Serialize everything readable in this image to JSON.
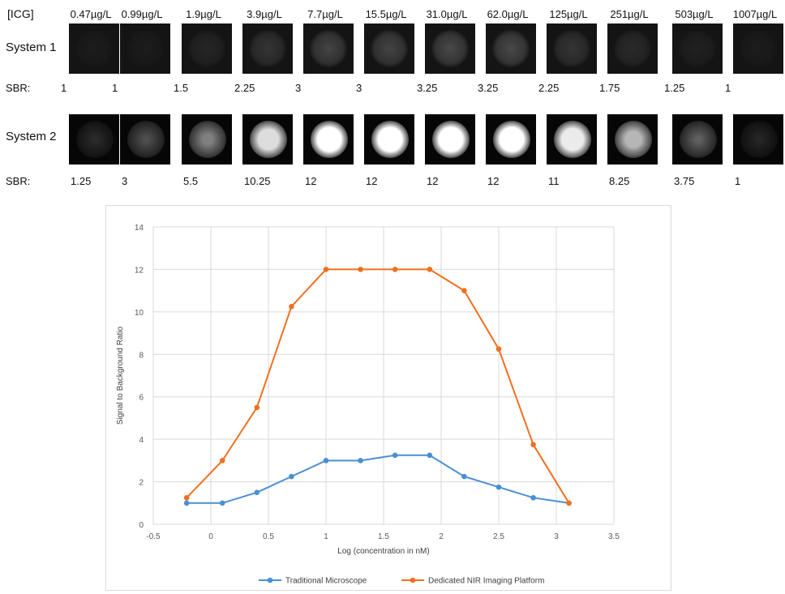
{
  "header": {
    "label": "[ICG]"
  },
  "concentrations": [
    "0.47µg/L",
    "0.99µg/L",
    "1.9µg/L",
    "3.9µg/L",
    "7.7µg/L",
    "15.5µg/L",
    "31.0µg/L",
    "62.0µg/L",
    "125µg/L",
    "251µg/L",
    "503µg/L",
    "1007µg/L"
  ],
  "systems": [
    {
      "label": "System 1",
      "sbr_label": "SBR:",
      "sbr": [
        "1",
        "1",
        "1.5",
        "2.25",
        "3",
        "3",
        "3.25",
        "3.25",
        "2.25",
        "1.75",
        "1.25",
        "1"
      ]
    },
    {
      "label": "System 2",
      "sbr_label": "SBR:",
      "sbr": [
        "1.25",
        "3",
        "5.5",
        "10.25",
        "12",
        "12",
        "12",
        "12",
        "11",
        "8.25",
        "3.75",
        "1"
      ]
    }
  ],
  "chart_data": {
    "type": "line",
    "xlabel": "Log (concentration in nM)",
    "ylabel": "Signal to Background Ratio",
    "xlim": [
      -0.5,
      3.5
    ],
    "ylim": [
      0,
      14
    ],
    "xticks": [
      "-0.5",
      "0",
      "0.5",
      "1",
      "1.5",
      "2",
      "2.5",
      "3",
      "3.5"
    ],
    "yticks": [
      "0",
      "2",
      "4",
      "6",
      "8",
      "10",
      "12",
      "14"
    ],
    "grid": true,
    "legend": "bottom",
    "x": [
      -0.21,
      0.1,
      0.4,
      0.7,
      1.0,
      1.3,
      1.6,
      1.9,
      2.2,
      2.5,
      2.8,
      3.11
    ],
    "series": [
      {
        "name": "Traditional Microscope",
        "color": "#4a8fd4",
        "values": [
          1,
          1,
          1.5,
          2.25,
          3,
          3,
          3.25,
          3.25,
          2.25,
          1.75,
          1.25,
          1
        ]
      },
      {
        "name": "Dedicated NIR Imaging Platform",
        "color": "#f07020",
        "values": [
          1.25,
          3,
          5.5,
          10.25,
          12,
          12,
          12,
          12,
          11,
          8.25,
          3.75,
          1
        ]
      }
    ]
  }
}
